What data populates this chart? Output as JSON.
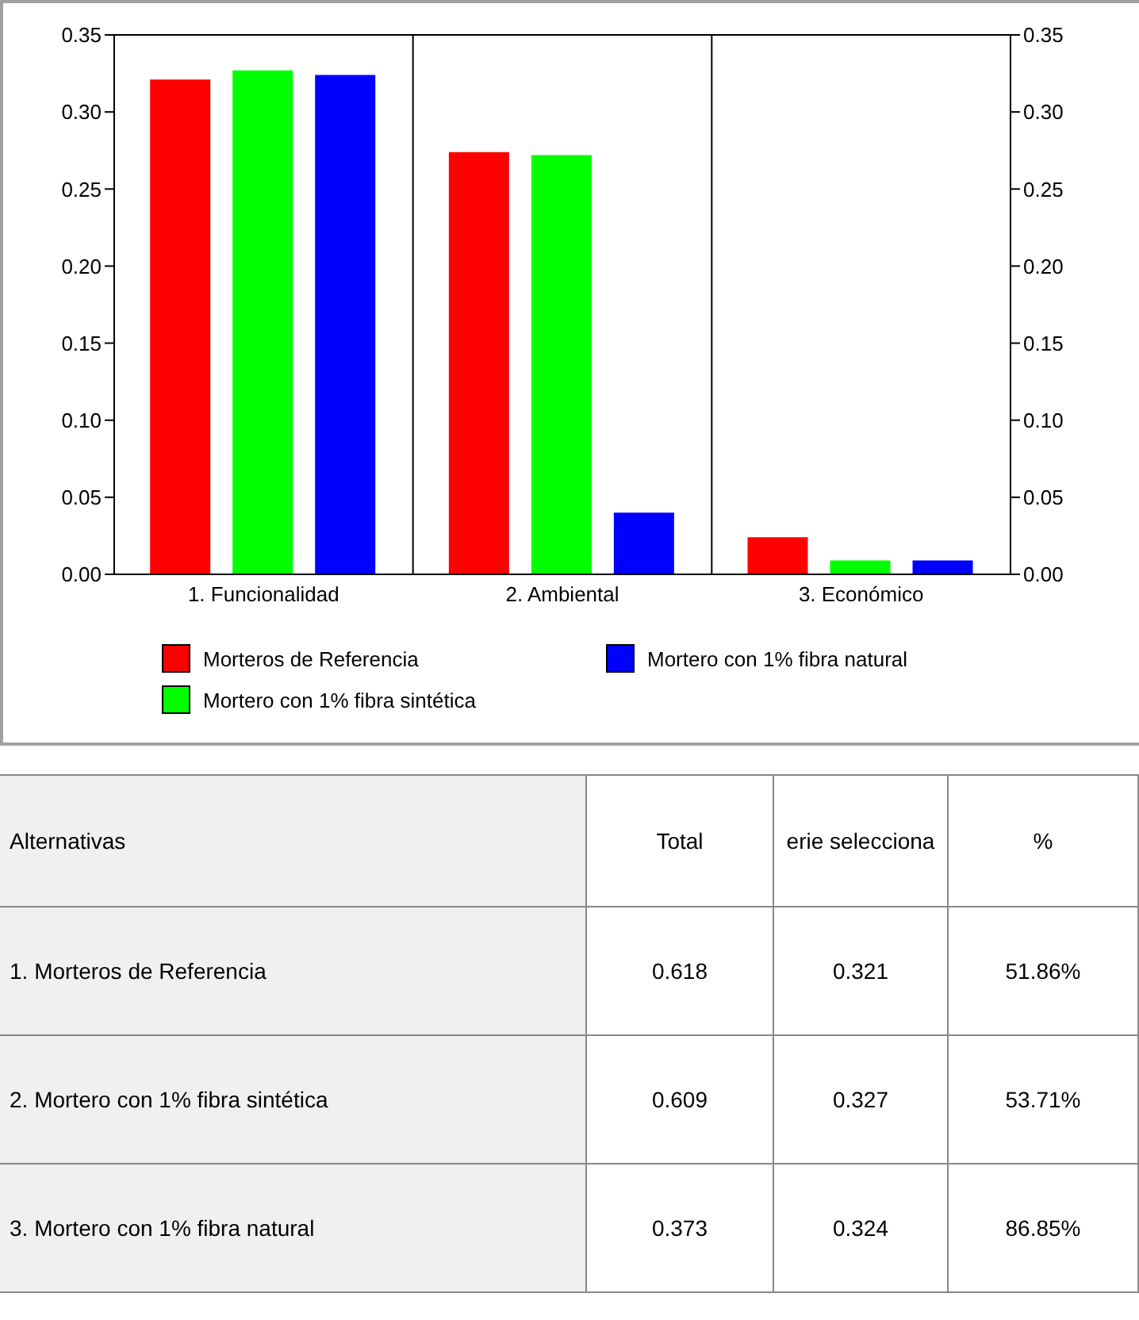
{
  "chart_data": {
    "type": "bar",
    "categories": [
      "1. Funcionalidad",
      "2. Ambiental",
      "3. Económico"
    ],
    "series": [
      {
        "name": "Morteros de Referencia",
        "color": "#ff0000",
        "values": [
          0.321,
          0.274,
          0.024
        ]
      },
      {
        "name": "Mortero con 1% fibra sintética",
        "color": "#00ff00",
        "values": [
          0.327,
          0.272,
          0.009
        ]
      },
      {
        "name": "Mortero con 1% fibra natural",
        "color": "#0000ff",
        "values": [
          0.324,
          0.04,
          0.009
        ]
      }
    ],
    "ylim": [
      0,
      0.35
    ],
    "yticks": [
      {
        "value": 0,
        "label": "0.00"
      },
      {
        "value": 0.05,
        "label": "0.05"
      },
      {
        "value": 0.1,
        "label": "0.10"
      },
      {
        "value": 0.15,
        "label": "0.15"
      },
      {
        "value": 0.2,
        "label": "0.20"
      },
      {
        "value": 0.25,
        "label": "0.25"
      },
      {
        "value": 0.3,
        "label": "0.30"
      },
      {
        "value": 0.35,
        "label": "0.35"
      }
    ],
    "y2lim": [
      0,
      0.35
    ],
    "y2ticks": [
      {
        "value": 0,
        "label": "0.00"
      },
      {
        "value": 0.05,
        "label": "0.05"
      },
      {
        "value": 0.1,
        "label": "0.10"
      },
      {
        "value": 0.15,
        "label": "0.15"
      },
      {
        "value": 0.2,
        "label": "0.20"
      },
      {
        "value": 0.25,
        "label": "0.25"
      },
      {
        "value": 0.3,
        "label": "0.30"
      },
      {
        "value": 0.35,
        "label": "0.35"
      }
    ],
    "grid": true,
    "legend": "bottom",
    "annotations": [
      "Alternativas",
      "Total",
      "erie selecciona",
      "%",
      "1. Morteros de Referencia",
      "0.618",
      "0.321",
      "51.86%",
      "2. Mortero con 1% fibra sintética",
      "0.609",
      "0.327",
      "53.71%",
      "3. Mortero con 1% fibra natural",
      "0.373",
      "0.324",
      "86.85%"
    ]
  }
}
